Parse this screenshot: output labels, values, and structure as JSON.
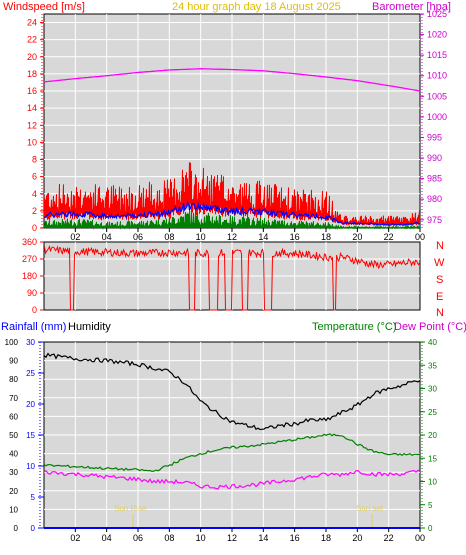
{
  "header": {
    "left_label": "Windspeed [m/s]",
    "title": "24 hour graph day   18 August 2025",
    "right_label": "Barometer [hpa]"
  },
  "panel2_labels": [
    "N",
    "W",
    "S",
    "E",
    "N"
  ],
  "panel3_header": {
    "rainfall": "Rainfall (mm)",
    "humidity": "Humidity",
    "temperature": "Temperature (°C)",
    "dewpoint": "Dew Point (°C)"
  },
  "annotations": {
    "sunrise": "Sun Rise",
    "sunset": "Sun set"
  },
  "colors": {
    "wind": "#ff0000",
    "avg_wind": "#0000ff",
    "min_wind": "#008000",
    "barometer": "#ff00ff",
    "direction": "#ff0000",
    "humidity": "#000000",
    "temperature": "#008000",
    "dewpoint": "#ff00ff",
    "rain": "#0000ff",
    "sun": "#e0d060",
    "grid": "#ffffff",
    "plot_bg": "#d8d8d8"
  },
  "chart_data": [
    {
      "type": "line",
      "title": "24 hour graph day   18 August 2025",
      "x_ticks": [
        "02",
        "04",
        "06",
        "08",
        "10",
        "12",
        "14",
        "16",
        "18",
        "20",
        "22",
        "00"
      ],
      "y_left": {
        "label": "Windspeed [m/s]",
        "range": [
          0,
          25
        ],
        "ticks": [
          0,
          2,
          4,
          6,
          8,
          10,
          12,
          14,
          16,
          18,
          20,
          22,
          24
        ]
      },
      "y_right": {
        "label": "Barometer [hpa]",
        "range": [
          973,
          1025
        ],
        "ticks": [
          975,
          980,
          985,
          990,
          995,
          1000,
          1005,
          1010,
          1015,
          1020,
          1025
        ]
      },
      "series": [
        {
          "name": "Barometer",
          "axis": "right",
          "x": [
            0,
            2,
            4,
            6,
            8,
            10,
            12,
            14,
            16,
            18,
            20,
            22,
            24
          ],
          "values": [
            1008.5,
            1009.3,
            1010.0,
            1010.8,
            1011.4,
            1011.7,
            1011.5,
            1011.2,
            1010.5,
            1009.7,
            1008.8,
            1007.6,
            1006.3
          ]
        },
        {
          "name": "Gust",
          "axis": "left",
          "x": [
            0,
            2,
            4,
            6,
            8,
            9,
            10,
            11,
            12,
            14,
            16,
            18,
            19,
            22,
            23,
            24
          ],
          "values": [
            3.5,
            3.8,
            3.5,
            3.7,
            4.0,
            5.5,
            5.0,
            4.5,
            4.0,
            3.8,
            3.2,
            3.0,
            1.0,
            1.0,
            1.0,
            1.5
          ]
        },
        {
          "name": "Average",
          "axis": "left",
          "x": [
            0,
            2,
            4,
            6,
            8,
            9,
            10,
            11,
            12,
            14,
            16,
            18,
            19,
            22,
            23,
            24
          ],
          "values": [
            1.5,
            1.7,
            1.4,
            1.5,
            1.8,
            2.6,
            2.5,
            2.3,
            2.0,
            1.9,
            1.5,
            1.3,
            0.6,
            0.4,
            0.4,
            0.6
          ]
        },
        {
          "name": "Min",
          "axis": "left",
          "x": [
            0,
            2,
            4,
            6,
            8,
            9,
            10,
            11,
            12,
            14,
            16,
            18,
            19,
            22,
            23,
            24
          ],
          "values": [
            0.6,
            0.8,
            0.5,
            0.6,
            0.9,
            1.5,
            1.3,
            1.1,
            1.0,
            0.8,
            0.6,
            0.5,
            0.1,
            0.1,
            0.1,
            0.2
          ]
        }
      ]
    },
    {
      "type": "line",
      "x_ticks": [
        "02",
        "04",
        "06",
        "08",
        "10",
        "12",
        "14",
        "16",
        "18",
        "20",
        "22",
        "00"
      ],
      "y": {
        "label": "Wind direction",
        "range": [
          0,
          360
        ],
        "ticks": [
          0,
          90,
          180,
          270,
          360
        ]
      },
      "series": [
        {
          "name": "Wind direction",
          "x": [
            0,
            2,
            4,
            6,
            8,
            10,
            12,
            14,
            16,
            17,
            18,
            19,
            20,
            21,
            22,
            23,
            24
          ],
          "values": [
            320,
            310,
            305,
            300,
            305,
            300,
            305,
            302,
            300,
            290,
            280,
            280,
            260,
            240,
            240,
            250,
            255
          ]
        }
      ]
    },
    {
      "type": "line",
      "x_ticks": [
        "02",
        "04",
        "06",
        "08",
        "10",
        "12",
        "14",
        "16",
        "18",
        "20",
        "22",
        "00"
      ],
      "y_humidity": {
        "label": "Humidity",
        "range": [
          0,
          100
        ],
        "ticks": [
          0,
          10,
          20,
          30,
          40,
          50,
          60,
          70,
          80,
          90,
          100
        ]
      },
      "y_rain": {
        "label": "Rainfall (mm)",
        "range": [
          0,
          30
        ],
        "ticks": [
          0,
          5,
          10,
          15,
          20,
          25,
          30
        ]
      },
      "y_temp": {
        "label": "Temperature (°C)",
        "range": [
          0,
          40
        ],
        "ticks": [
          0,
          5,
          10,
          15,
          20,
          25,
          30,
          35,
          40
        ]
      },
      "series": [
        {
          "name": "Humidity",
          "axis": "humidity",
          "x": [
            0,
            2,
            4,
            6,
            7,
            8,
            9,
            10,
            11,
            12,
            13,
            14,
            15,
            16,
            17,
            18,
            19,
            20,
            21,
            22,
            23,
            24
          ],
          "values": [
            93,
            91,
            90,
            88,
            86,
            84,
            78,
            68,
            62,
            57,
            55,
            53,
            55,
            56,
            58,
            58,
            62,
            66,
            72,
            75,
            77,
            80
          ]
        },
        {
          "name": "Temperature",
          "axis": "temp",
          "x": [
            0,
            2,
            4,
            6,
            7,
            8,
            9,
            10,
            11,
            12,
            13,
            14,
            15,
            16,
            17,
            18,
            19,
            20,
            21,
            22,
            23,
            24
          ],
          "values": [
            13.5,
            13.2,
            12.8,
            12.5,
            12.2,
            13.5,
            15,
            16,
            16.8,
            17.3,
            17.6,
            18,
            18.5,
            19,
            19.5,
            20,
            20,
            18,
            16.5,
            15.8,
            15.8,
            15.8
          ]
        },
        {
          "name": "Dew Point",
          "axis": "temp",
          "x": [
            0,
            2,
            4,
            6,
            7,
            8,
            9,
            10,
            11,
            12,
            13,
            14,
            15,
            16,
            17,
            18,
            19,
            20,
            21,
            22,
            23,
            24
          ],
          "values": [
            12,
            11.6,
            11,
            10.5,
            10,
            10,
            9.8,
            9.0,
            8.8,
            9.0,
            9.2,
            9.5,
            10,
            10.5,
            11,
            11.5,
            11.5,
            12.2,
            11.6,
            11.5,
            11.7,
            12.2
          ]
        },
        {
          "name": "Rainfall",
          "axis": "rain",
          "x": [
            0,
            24
          ],
          "values": [
            0,
            0
          ]
        }
      ]
    }
  ]
}
